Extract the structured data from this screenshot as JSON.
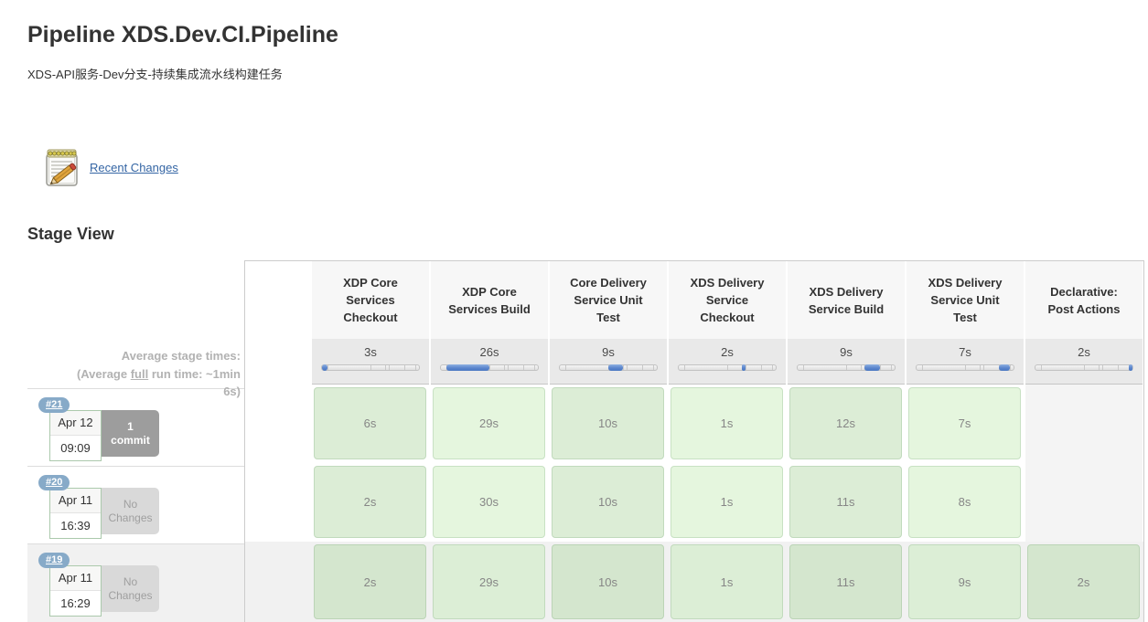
{
  "header": {
    "title": "Pipeline XDS.Dev.CI.Pipeline",
    "subtitle": "XDS-API服务-Dev分支-持续集成流水线构建任务"
  },
  "recent_changes": {
    "label": "Recent Changes",
    "icon": "notepad-pencil-icon"
  },
  "stage_view": {
    "heading": "Stage View",
    "average_note": {
      "line1": "Average stage times:",
      "line2_prefix": "(Average ",
      "line2_underlined": "full",
      "line2_suffix": " run time: ~1min",
      "line3": "6s)"
    },
    "bar_ticks": [
      5.2,
      50,
      65.5,
      69,
      84.5,
      96.6
    ],
    "stages": [
      {
        "name": "XDP Core Services Checkout",
        "average": "3s",
        "bar_start": 0,
        "bar_end": 5.2
      },
      {
        "name": "XDP Core Services Build",
        "average": "26s",
        "bar_start": 5.2,
        "bar_end": 50
      },
      {
        "name": "Core Delivery Service Unit Test",
        "average": "9s",
        "bar_start": 50,
        "bar_end": 65.5
      },
      {
        "name": "XDS Delivery Service Checkout",
        "average": "2s",
        "bar_start": 65.5,
        "bar_end": 69
      },
      {
        "name": "XDS Delivery Service Build",
        "average": "9s",
        "bar_start": 69,
        "bar_end": 84.5
      },
      {
        "name": "XDS Delivery Service Unit Test",
        "average": "7s",
        "bar_start": 84.5,
        "bar_end": 96.6
      },
      {
        "name": "Declarative: Post Actions",
        "average": "2s",
        "bar_start": 96.6,
        "bar_end": 100
      }
    ],
    "builds": [
      {
        "number": "#21",
        "date": "Apr 12",
        "time": "09:09",
        "changes_line1": "1",
        "changes_line2": "commit",
        "has_commits": true,
        "striped": false,
        "durations": [
          "6s",
          "29s",
          "10s",
          "1s",
          "12s",
          "7s",
          null
        ]
      },
      {
        "number": "#20",
        "date": "Apr 11",
        "time": "16:39",
        "changes_line1": "No",
        "changes_line2": "Changes",
        "has_commits": false,
        "striped": false,
        "durations": [
          "2s",
          "30s",
          "10s",
          "1s",
          "11s",
          "8s",
          null
        ]
      },
      {
        "number": "#19",
        "date": "Apr 11",
        "time": "16:29",
        "changes_line1": "No",
        "changes_line2": "Changes",
        "has_commits": false,
        "striped": true,
        "durations": [
          "2s",
          "29s",
          "10s",
          "1s",
          "11s",
          "9s",
          "2s"
        ]
      }
    ]
  },
  "colors": {
    "accent_blue_bar": "#5b86cd",
    "success_cell": "#e5f6de",
    "success_cell_alt": "#dcedd6",
    "badge_blue": "#87aac8",
    "link_blue": "#3465a4",
    "header_grey": "#f7f7f7",
    "avg_row_grey": "#e9e9e9"
  }
}
